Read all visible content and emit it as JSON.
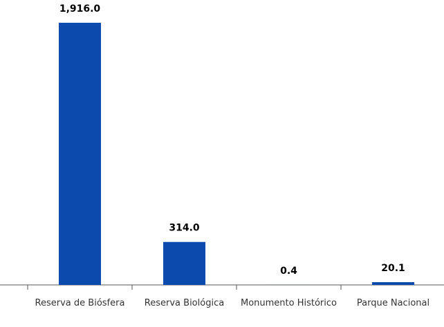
{
  "chart_data": {
    "type": "bar",
    "categories": [
      "Reserva de Biósfera",
      "Reserva Biológica",
      "Monumento Histórico",
      "Parque Nacional"
    ],
    "values": [
      1916.0,
      314.0,
      0.4,
      20.1
    ],
    "value_labels": [
      "1,916.0",
      "314.0",
      "0.4",
      "20.1"
    ],
    "color": "#0d4aae"
  }
}
